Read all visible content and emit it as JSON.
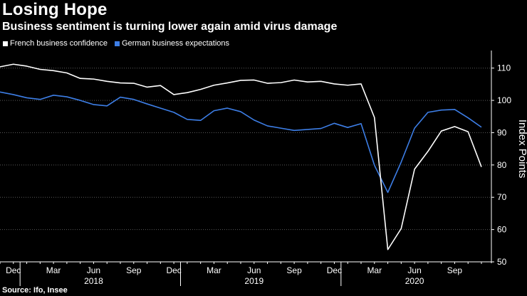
{
  "header": {
    "title": "Losing Hope",
    "subtitle": "Business sentiment is turning lower again amid virus damage"
  },
  "source": "Source: Ifo, Insee",
  "chart_data": {
    "type": "line",
    "title": "Losing Hope",
    "subtitle": "Business sentiment is turning lower again amid virus damage",
    "ylabel": "Index Points",
    "xlabel": "",
    "ylim": [
      50,
      115
    ],
    "yticks": [
      50,
      60,
      70,
      80,
      90,
      100,
      110
    ],
    "grid": true,
    "legend_position": "top-left",
    "x": [
      "2017-11",
      "2017-12",
      "2018-01",
      "2018-02",
      "2018-03",
      "2018-04",
      "2018-05",
      "2018-06",
      "2018-07",
      "2018-08",
      "2018-09",
      "2018-10",
      "2018-11",
      "2018-12",
      "2019-01",
      "2019-02",
      "2019-03",
      "2019-04",
      "2019-05",
      "2019-06",
      "2019-07",
      "2019-08",
      "2019-09",
      "2019-10",
      "2019-11",
      "2019-12",
      "2020-01",
      "2020-02",
      "2020-03",
      "2020-04",
      "2020-05",
      "2020-06",
      "2020-07",
      "2020-08",
      "2020-09",
      "2020-10",
      "2020-11"
    ],
    "x_ticks": [
      {
        "date": "2017-12",
        "label": "Dec"
      },
      {
        "date": "2018-03",
        "label": "Mar"
      },
      {
        "date": "2018-06",
        "label": "Jun"
      },
      {
        "date": "2018-09",
        "label": "Sep"
      },
      {
        "date": "2018-12",
        "label": "Dec"
      },
      {
        "date": "2019-03",
        "label": "Mar"
      },
      {
        "date": "2019-06",
        "label": "Jun"
      },
      {
        "date": "2019-09",
        "label": "Sep"
      },
      {
        "date": "2019-12",
        "label": "Dec"
      },
      {
        "date": "2020-03",
        "label": "Mar"
      },
      {
        "date": "2020-06",
        "label": "Jun"
      },
      {
        "date": "2020-09",
        "label": "Sep"
      }
    ],
    "year_labels": [
      {
        "date": "2018-06",
        "label": "2018"
      },
      {
        "date": "2019-06",
        "label": "2019"
      },
      {
        "date": "2020-06",
        "label": "2020"
      }
    ],
    "series": [
      {
        "name": "French business confidence",
        "color": "#ffffff",
        "values": [
          110.4,
          111.2,
          110.6,
          109.6,
          109.2,
          108.5,
          106.8,
          106.6,
          105.9,
          105.4,
          105.3,
          104.1,
          104.6,
          101.8,
          102.4,
          103.4,
          104.7,
          105.4,
          106.2,
          106.3,
          105.3,
          105.5,
          106.3,
          105.7,
          105.9,
          105.1,
          104.7,
          105.1,
          94.7,
          53.8,
          60.3,
          78.7,
          84.2,
          90.5,
          91.9,
          90.3,
          79.4
        ]
      },
      {
        "name": "German business expectations",
        "color": "#3d7ee6",
        "values": [
          102.6,
          101.8,
          100.8,
          100.3,
          101.6,
          101.1,
          100.0,
          98.7,
          98.3,
          101.0,
          100.3,
          98.9,
          97.6,
          96.3,
          94.1,
          93.8,
          96.8,
          97.6,
          96.5,
          93.9,
          92.1,
          91.4,
          90.7,
          91.0,
          91.3,
          92.9,
          91.6,
          92.8,
          79.9,
          71.5,
          80.9,
          91.4,
          96.3,
          97.0,
          97.2,
          94.6,
          91.7
        ]
      }
    ]
  }
}
